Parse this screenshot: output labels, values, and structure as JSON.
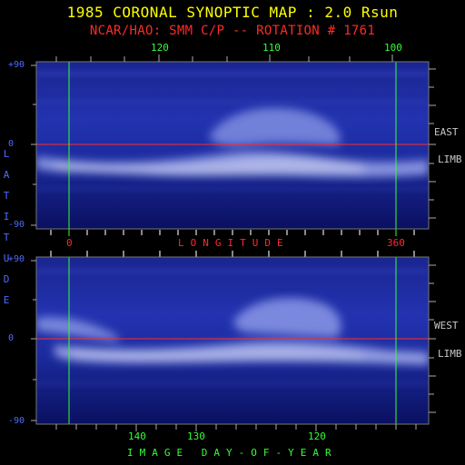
{
  "title": "1985 CORONAL SYNOPTIC MAP : 2.0 Rsun",
  "subtitle": "NCAR/HAO: SMM C/P -- ROTATION # 1761",
  "top_axis": {
    "labels": [
      "120",
      "110",
      "100"
    ]
  },
  "left_axis": {
    "label": "LATITUDE",
    "tick_labels": [
      "+90",
      "0",
      "-90"
    ]
  },
  "longitude_axis": {
    "label": "LONGITUDE",
    "tick_labels": [
      "0",
      "360"
    ]
  },
  "bottom_axis": {
    "label": "IMAGE DAY-OF-YEAR",
    "labels": [
      "140",
      "130",
      "120"
    ]
  },
  "east_panel": {
    "side_labels": [
      "EAST",
      "LIMB"
    ]
  },
  "west_panel": {
    "side_labels": [
      "WEST",
      "LIMB"
    ]
  },
  "colors": {
    "title": "#ffff00",
    "subtitle": "#ff2a2a",
    "grid_green": "#33ff33",
    "equator_red": "#ff2a2a",
    "axis_blue": "#4d6bff"
  }
}
